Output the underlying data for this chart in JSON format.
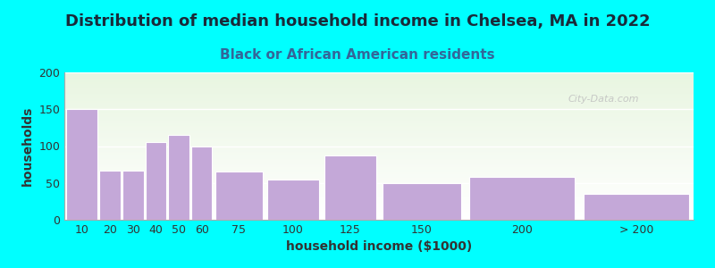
{
  "title": "Distribution of median household income in Chelsea, MA in 2022",
  "subtitle": "Black or African American residents",
  "xlabel": "household income ($1000)",
  "ylabel": "households",
  "background_outer": "#00FFFF",
  "background_inner_top": "#e0f0e0",
  "background_inner_bottom": "#f8fff8",
  "bar_color": "#c4a8d8",
  "bar_edge_color": "#ffffff",
  "categories": [
    "10",
    "20",
    "30",
    "40",
    "50",
    "60",
    "75",
    "100",
    "125",
    "150",
    "200",
    "> 200"
  ],
  "bin_edges": [
    0,
    15,
    25,
    35,
    45,
    55,
    65,
    87.5,
    112.5,
    137.5,
    175,
    225,
    275
  ],
  "values": [
    150,
    67,
    67,
    105,
    115,
    100,
    65,
    55,
    87,
    50,
    58,
    35
  ],
  "ylim": [
    0,
    200
  ],
  "yticks": [
    0,
    50,
    100,
    150,
    200
  ],
  "title_fontsize": 13,
  "subtitle_fontsize": 11,
  "axis_label_fontsize": 10,
  "tick_fontsize": 9,
  "watermark": "City-Data.com",
  "title_color": "#1a1a2e",
  "subtitle_color": "#336699"
}
